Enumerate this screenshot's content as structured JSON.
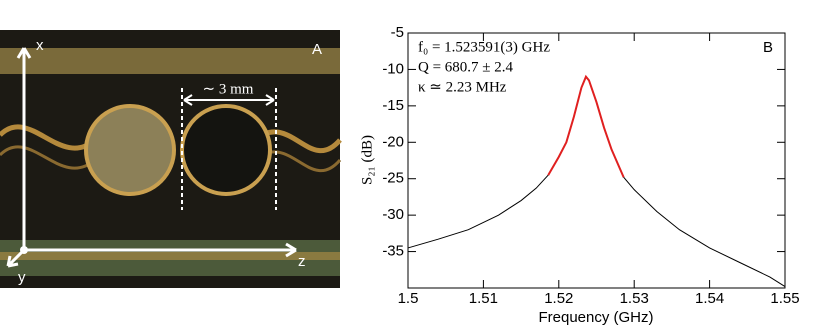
{
  "panel_a": {
    "label": "A",
    "axes": [
      "x",
      "y",
      "z"
    ],
    "scale": "∼ 3 mm"
  },
  "chart_data": {
    "type": "line",
    "panel_label": "B",
    "annotations": [
      "f₀ = 1.523591(3) GHz",
      "Q = 680.7 ± 2.4",
      "κ ≃ 2.23 MHz"
    ],
    "x_label": "Frequency (GHz)",
    "y_label": "S₂₁ (dB)",
    "x": [
      1.5,
      1.504,
      1.508,
      1.512,
      1.515,
      1.517,
      1.5186,
      1.52,
      1.521,
      1.522,
      1.523,
      1.5236,
      1.524,
      1.525,
      1.526,
      1.527,
      1.5286,
      1.53,
      1.533,
      1.536,
      1.54,
      1.544,
      1.548,
      1.55
    ],
    "series": [
      {
        "color": "#000000",
        "values": [
          -34.5,
          -33.3,
          -32,
          -30,
          -28,
          -26.3,
          -24.5,
          -22,
          -20,
          -16.5,
          -12.5,
          -11,
          -11.5,
          -14.5,
          -18,
          -21,
          -24.8,
          -26.5,
          -29.5,
          -32,
          -34.5,
          -36.5,
          -38.5,
          -39.8
        ]
      },
      {
        "color": "#e02020",
        "values": [
          null,
          null,
          null,
          null,
          null,
          null,
          -24.5,
          -22,
          -20,
          -16.5,
          -12.5,
          -11,
          -11.5,
          -14.5,
          -18,
          -21,
          -24.8,
          null,
          null,
          null,
          null,
          null,
          null,
          null
        ]
      }
    ],
    "xlim": [
      1.5,
      1.55
    ],
    "xticks": [
      1.5,
      1.51,
      1.52,
      1.53,
      1.54,
      1.55
    ],
    "ylim": [
      -40,
      -5
    ],
    "yticks": [
      -35,
      -30,
      -25,
      -20,
      -15,
      -10,
      -5
    ],
    "grid": false
  }
}
